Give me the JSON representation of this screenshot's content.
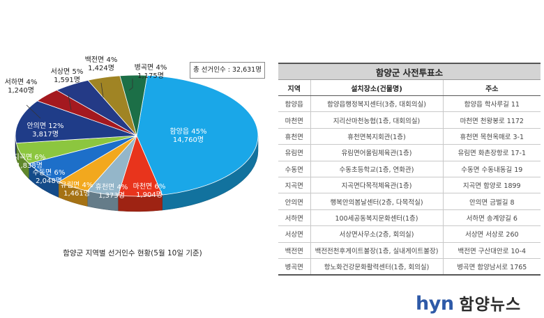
{
  "chart_data": {
    "type": "pie",
    "title": "함양군 지역별 선거인수 현황(5월 10일 기준)",
    "total_label": "총 선거인수 : 32,631명",
    "slices": [
      {
        "name": "함양읍",
        "percent_label": "45%",
        "value": 14760,
        "value_label": "14,760명",
        "color": "#1aa7e8"
      },
      {
        "name": "마천면",
        "percent_label": "6%",
        "value": 1904,
        "value_label": "1,904명",
        "color": "#e8341c"
      },
      {
        "name": "휴천면",
        "percent_label": "4%",
        "value": 1373,
        "value_label": "1,373명",
        "color": "#94b6c9"
      },
      {
        "name": "유림면",
        "percent_label": "4%",
        "value": 1461,
        "value_label": "1,461명",
        "color": "#f2a81e"
      },
      {
        "name": "수동면",
        "percent_label": "6%",
        "value": 2048,
        "value_label": "2,048명",
        "color": "#1d6fc9"
      },
      {
        "name": "지곡면",
        "percent_label": "6%",
        "value": 1838,
        "value_label": "1,838명",
        "color": "#8cc63f"
      },
      {
        "name": "안의면",
        "percent_label": "12%",
        "value": 3817,
        "value_label": "3,817명",
        "color": "#1f3c88"
      },
      {
        "name": "서하면",
        "percent_label": "4%",
        "value": 1240,
        "value_label": "1,240명",
        "color": "#a4191f"
      },
      {
        "name": "서상면",
        "percent_label": "5%",
        "value": 1591,
        "value_label": "1,591명",
        "color": "#243a86"
      },
      {
        "name": "백전면",
        "percent_label": "4%",
        "value": 1424,
        "value_label": "1,424명",
        "color": "#a08424"
      },
      {
        "name": "병곡면",
        "percent_label": "4%",
        "value": 1175,
        "value_label": "1,175명",
        "color": "#1c6f47"
      }
    ]
  },
  "table": {
    "title": "함양군 사전투표소",
    "headers": [
      "지역",
      "설치장소(건물명)",
      "주소"
    ],
    "rows": [
      [
        "함양읍",
        "함양읍행정복지센터(3층, 대회의실)",
        "함양읍 학사루길 11"
      ],
      [
        "마천면",
        "지리산마천농협(1층, 대회의실)",
        "마천면 천왕봉로 1172"
      ],
      [
        "휴천면",
        "휴천면복지회관(1층)",
        "휴천면 목현옥매로 3-1"
      ],
      [
        "유림면",
        "유림면어울림체육관(1층)",
        "유림면 화촌장항로 17-1"
      ],
      [
        "수동면",
        "수동초등학교(1층, 연화관)",
        "수동면 수동내동길 19"
      ],
      [
        "지곡면",
        "지곡면다목적체육관(1층)",
        "지곡면 함양로 1899"
      ],
      [
        "안의면",
        "행복안의봄날센터(2층, 다목적실)",
        "안의면 금벌길 8"
      ],
      [
        "서하면",
        "100세공동복지문화센터(1층)",
        "서하면 송계양길 6"
      ],
      [
        "서상면",
        "서상면사무소(2층, 회의실)",
        "서상면 서상로 260"
      ],
      [
        "백전면",
        "백전전천후게이트볼장(1층, 실내게이트볼장)",
        "백전면 구산대안로 10-4"
      ],
      [
        "병곡면",
        "항노화건강문화활력센터(1층, 회의실)",
        "병곡면 함양남서로 1765"
      ]
    ]
  },
  "brand": {
    "en": "hyn",
    "ko": "함양뉴스"
  }
}
